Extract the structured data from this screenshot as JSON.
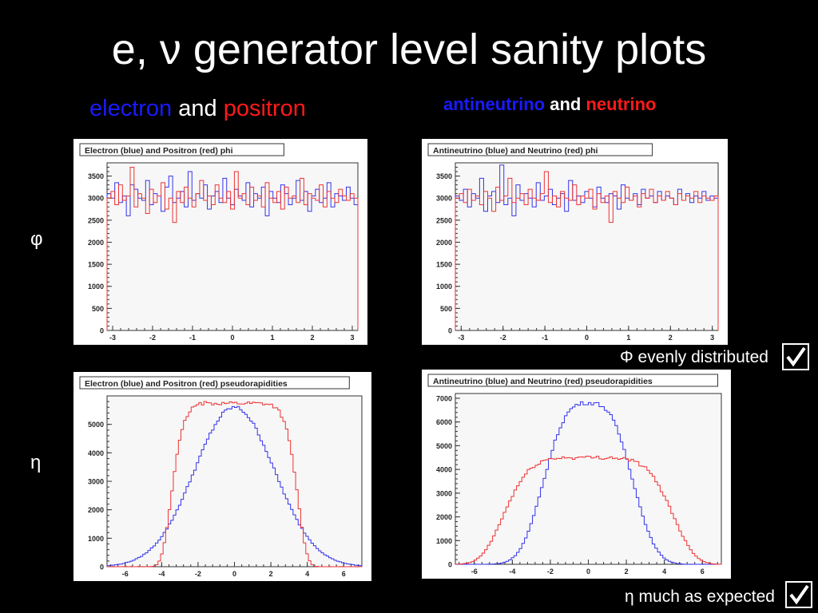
{
  "slide": {
    "title": "e, ν generator level sanity plots",
    "left_header": {
      "part1": "electron",
      "and": "and",
      "part2": "positron"
    },
    "right_header": {
      "part1": "antineutrino",
      "and": "and",
      "part2": "neutrino"
    },
    "row_phi_label": "φ",
    "row_eta_label": "η",
    "note_phi": "Φ evenly distributed",
    "note_eta": "η much as expected",
    "checkbox_icon": "checkmark-box-icon"
  },
  "colors": {
    "blue": "#1a1aff",
    "red": "#ff1a1a",
    "plot_blue": "#3333ee",
    "plot_red": "#ee3333",
    "panel_bg": "#ffffff",
    "axes_bg": "#f7f7f7"
  },
  "chart_data": [
    {
      "type": "histogram",
      "title": "Electron (blue) and Positron (red) phi",
      "x": {
        "min": -3.14,
        "max": 3.14,
        "ticks": [
          -3,
          -2,
          -1,
          0,
          1,
          2,
          3
        ]
      },
      "y": {
        "min": 0,
        "max": 3800,
        "ticks": [
          0,
          500,
          1000,
          1500,
          2000,
          2500,
          3000,
          3500
        ]
      },
      "series": [
        {
          "color": "blue",
          "values": [
            3100,
            3000,
            3350,
            2900,
            3050,
            2600,
            3300,
            3200,
            3000,
            2950,
            3400,
            2850,
            3100,
            3050,
            2700,
            3250,
            3500,
            2900,
            3000,
            3150,
            2800,
            3600,
            2950,
            3100,
            3000,
            3300,
            2750,
            3050,
            3150,
            2900,
            3450,
            3000,
            2850,
            3200,
            3050,
            2950,
            3350,
            2800,
            3100,
            3000,
            3250,
            2600,
            3150,
            3000,
            2900,
            3300,
            3100,
            2850,
            3000,
            3400,
            2950,
            3150,
            2700,
            3050,
            3200,
            2900,
            3000,
            3350,
            2800,
            3100,
            3050,
            2950,
            3250,
            3000,
            2850
          ]
        },
        {
          "color": "red",
          "values": [
            3000,
            3150,
            2850,
            3300,
            2950,
            3050,
            3700,
            2800,
            3100,
            3000,
            2650,
            3200,
            2900,
            3050,
            3350,
            2750,
            3000,
            2450,
            3150,
            2900,
            3250,
            3000,
            2800,
            3100,
            3400,
            2950,
            3050,
            2850,
            3300,
            3000,
            2900,
            3150,
            2750,
            3600,
            3000,
            3100,
            2850,
            3250,
            2950,
            3050,
            2800,
            3350,
            3000,
            2900,
            3150,
            2750,
            3250,
            3000,
            3050,
            2900,
            3450,
            2850,
            3100,
            3000,
            2950,
            3300,
            2800,
            3150,
            3000,
            2900,
            3200,
            3050,
            2950,
            3100,
            3000
          ]
        }
      ]
    },
    {
      "type": "histogram",
      "title": "Antineutrino (blue) and Neutrino (red) phi",
      "x": {
        "min": -3.14,
        "max": 3.14,
        "ticks": [
          -3,
          -2,
          -1,
          0,
          1,
          2,
          3
        ]
      },
      "y": {
        "min": 0,
        "max": 3800,
        "ticks": [
          0,
          500,
          1000,
          1500,
          2000,
          2500,
          3000,
          3500
        ]
      },
      "series": [
        {
          "color": "blue",
          "values": [
            3050,
            2950,
            3200,
            2800,
            3100,
            3000,
            3450,
            2700,
            3050,
            3150,
            2900,
            3750,
            2850,
            3000,
            2600,
            3300,
            2950,
            3100,
            3000,
            2800,
            3350,
            2950,
            3050,
            3200,
            2850,
            3000,
            3100,
            2700,
            3400,
            2950,
            3050,
            2900,
            3150,
            3000,
            2800,
            3250,
            3000,
            2900,
            3100,
            3050,
            2750,
            3300,
            3000,
            2950,
            3100,
            2850,
            3200,
            3000,
            3050,
            2900,
            3150,
            2950,
            3050,
            3000,
            2850,
            3200,
            2950,
            3100,
            2900,
            3050,
            3000,
            3150,
            2950,
            3050,
            3000
          ]
        },
        {
          "color": "red",
          "values": [
            3000,
            3100,
            2900,
            3200,
            2950,
            3050,
            2850,
            3150,
            3000,
            2700,
            3250,
            2950,
            3050,
            3450,
            2900,
            3000,
            3100,
            2850,
            3200,
            3000,
            2950,
            3100,
            3600,
            2900,
            3050,
            2800,
            3150,
            3000,
            2950,
            3300,
            2850,
            3050,
            3000,
            3200,
            2750,
            3100,
            2900,
            3050,
            2450,
            3150,
            3000,
            2900,
            3250,
            2950,
            3050,
            2800,
            3100,
            3000,
            3200,
            2900,
            3050,
            2950,
            3150,
            3000,
            2850,
            3100,
            2950,
            3050,
            3000,
            3150,
            2900,
            3050,
            3000,
            2950,
            3050
          ]
        }
      ]
    },
    {
      "type": "histogram",
      "title": "Electron (blue) and Positron (red) pseudorapidities",
      "x": {
        "min": -7,
        "max": 7,
        "ticks": [
          -6,
          -4,
          -2,
          0,
          2,
          4,
          6
        ]
      },
      "y": {
        "min": 0,
        "max": 6000,
        "ticks": [
          0,
          1000,
          2000,
          3000,
          4000,
          5000
        ]
      },
      "series": [
        {
          "color": "blue",
          "peak": 5600,
          "width": 3.1,
          "power": 2.0,
          "noise": 60
        },
        {
          "color": "red",
          "peak": 5750,
          "width": 3.55,
          "power": 8.0,
          "noise": 60
        }
      ]
    },
    {
      "type": "histogram",
      "title": "Antineutrino (blue) and Neutrino (red) pseudorapidities",
      "x": {
        "min": -7,
        "max": 7,
        "ticks": [
          -6,
          -4,
          -2,
          0,
          2,
          4,
          6
        ]
      },
      "y": {
        "min": 0,
        "max": 7200,
        "ticks": [
          0,
          1000,
          2000,
          3000,
          4000,
          5000,
          6000,
          7000
        ]
      },
      "series": [
        {
          "color": "blue",
          "peak": 6800,
          "width": 2.7,
          "power": 3.0,
          "noise": 70
        },
        {
          "color": "red",
          "peak": 4500,
          "width": 4.7,
          "power": 5.0,
          "noise": 70
        }
      ]
    }
  ]
}
